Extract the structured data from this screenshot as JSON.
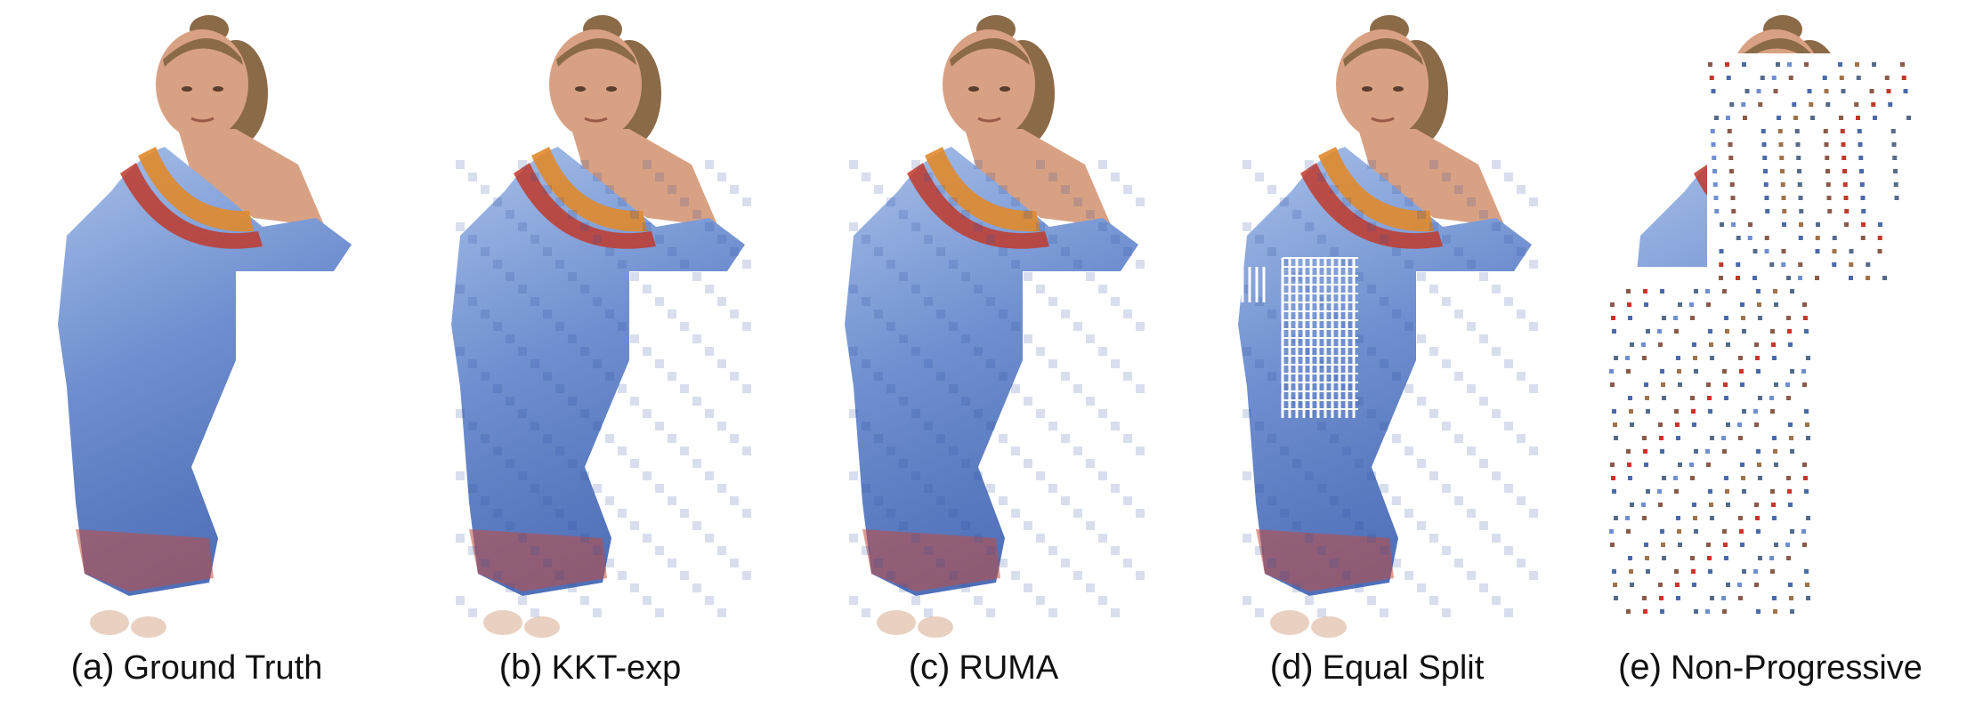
{
  "figure": {
    "panels": [
      {
        "tag": "(a)",
        "label": "Ground Truth",
        "variant": "full"
      },
      {
        "tag": "(b)",
        "label": "KKT-exp",
        "variant": "pixelated"
      },
      {
        "tag": "(c)",
        "label": "RUMA",
        "variant": "pixelated"
      },
      {
        "tag": "(d)",
        "label": "Equal Split",
        "variant": "holes"
      },
      {
        "tag": "(e)",
        "label": "Non-Progressive",
        "variant": "sparse"
      }
    ]
  },
  "colors": {
    "background": "#ffffff",
    "skin": "#d9a183",
    "hair": "#8b6a47",
    "dress_blue": "#6f8fd0",
    "dress_light": "#a8c0e8",
    "pattern_red": "#c0392b",
    "pattern_orange": "#e08a2c",
    "caption_text": "#111111"
  }
}
